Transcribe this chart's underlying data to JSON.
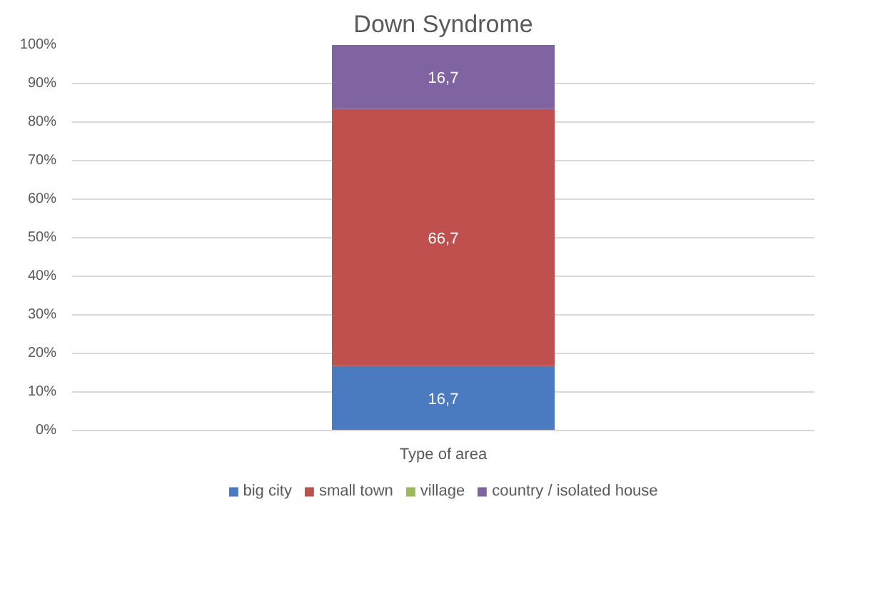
{
  "chart_data": {
    "type": "bar",
    "title": "Down Syndrome",
    "xlabel": "Type of area",
    "categories": [
      null
    ],
    "stacked": true,
    "series": [
      {
        "name": "big city",
        "color": "#4a7bc0",
        "values": [
          16.7
        ],
        "value_labels": [
          "16,7"
        ]
      },
      {
        "name": "small town",
        "color": "#c0504d",
        "values": [
          66.7
        ],
        "value_labels": [
          "66,7"
        ]
      },
      {
        "name": "village",
        "color": "#9bbb59",
        "values": [
          0
        ],
        "value_labels": [
          null
        ]
      },
      {
        "name": "country / isolated house",
        "color": "#8064a2",
        "values": [
          16.7
        ],
        "value_labels": [
          "16,7"
        ]
      }
    ],
    "ylim": [
      0,
      100
    ],
    "yticks": [
      {
        "value": 0,
        "label": "0%"
      },
      {
        "value": 10,
        "label": "10%"
      },
      {
        "value": 20,
        "label": "20%"
      },
      {
        "value": 30,
        "label": "30%"
      },
      {
        "value": 40,
        "label": "40%"
      },
      {
        "value": 50,
        "label": "50%"
      },
      {
        "value": 60,
        "label": "60%"
      },
      {
        "value": 70,
        "label": "70%"
      },
      {
        "value": 80,
        "label": "80%"
      },
      {
        "value": 90,
        "label": "90%"
      },
      {
        "value": 100,
        "label": "100%"
      }
    ],
    "grid": "y",
    "legend": "bottom"
  }
}
